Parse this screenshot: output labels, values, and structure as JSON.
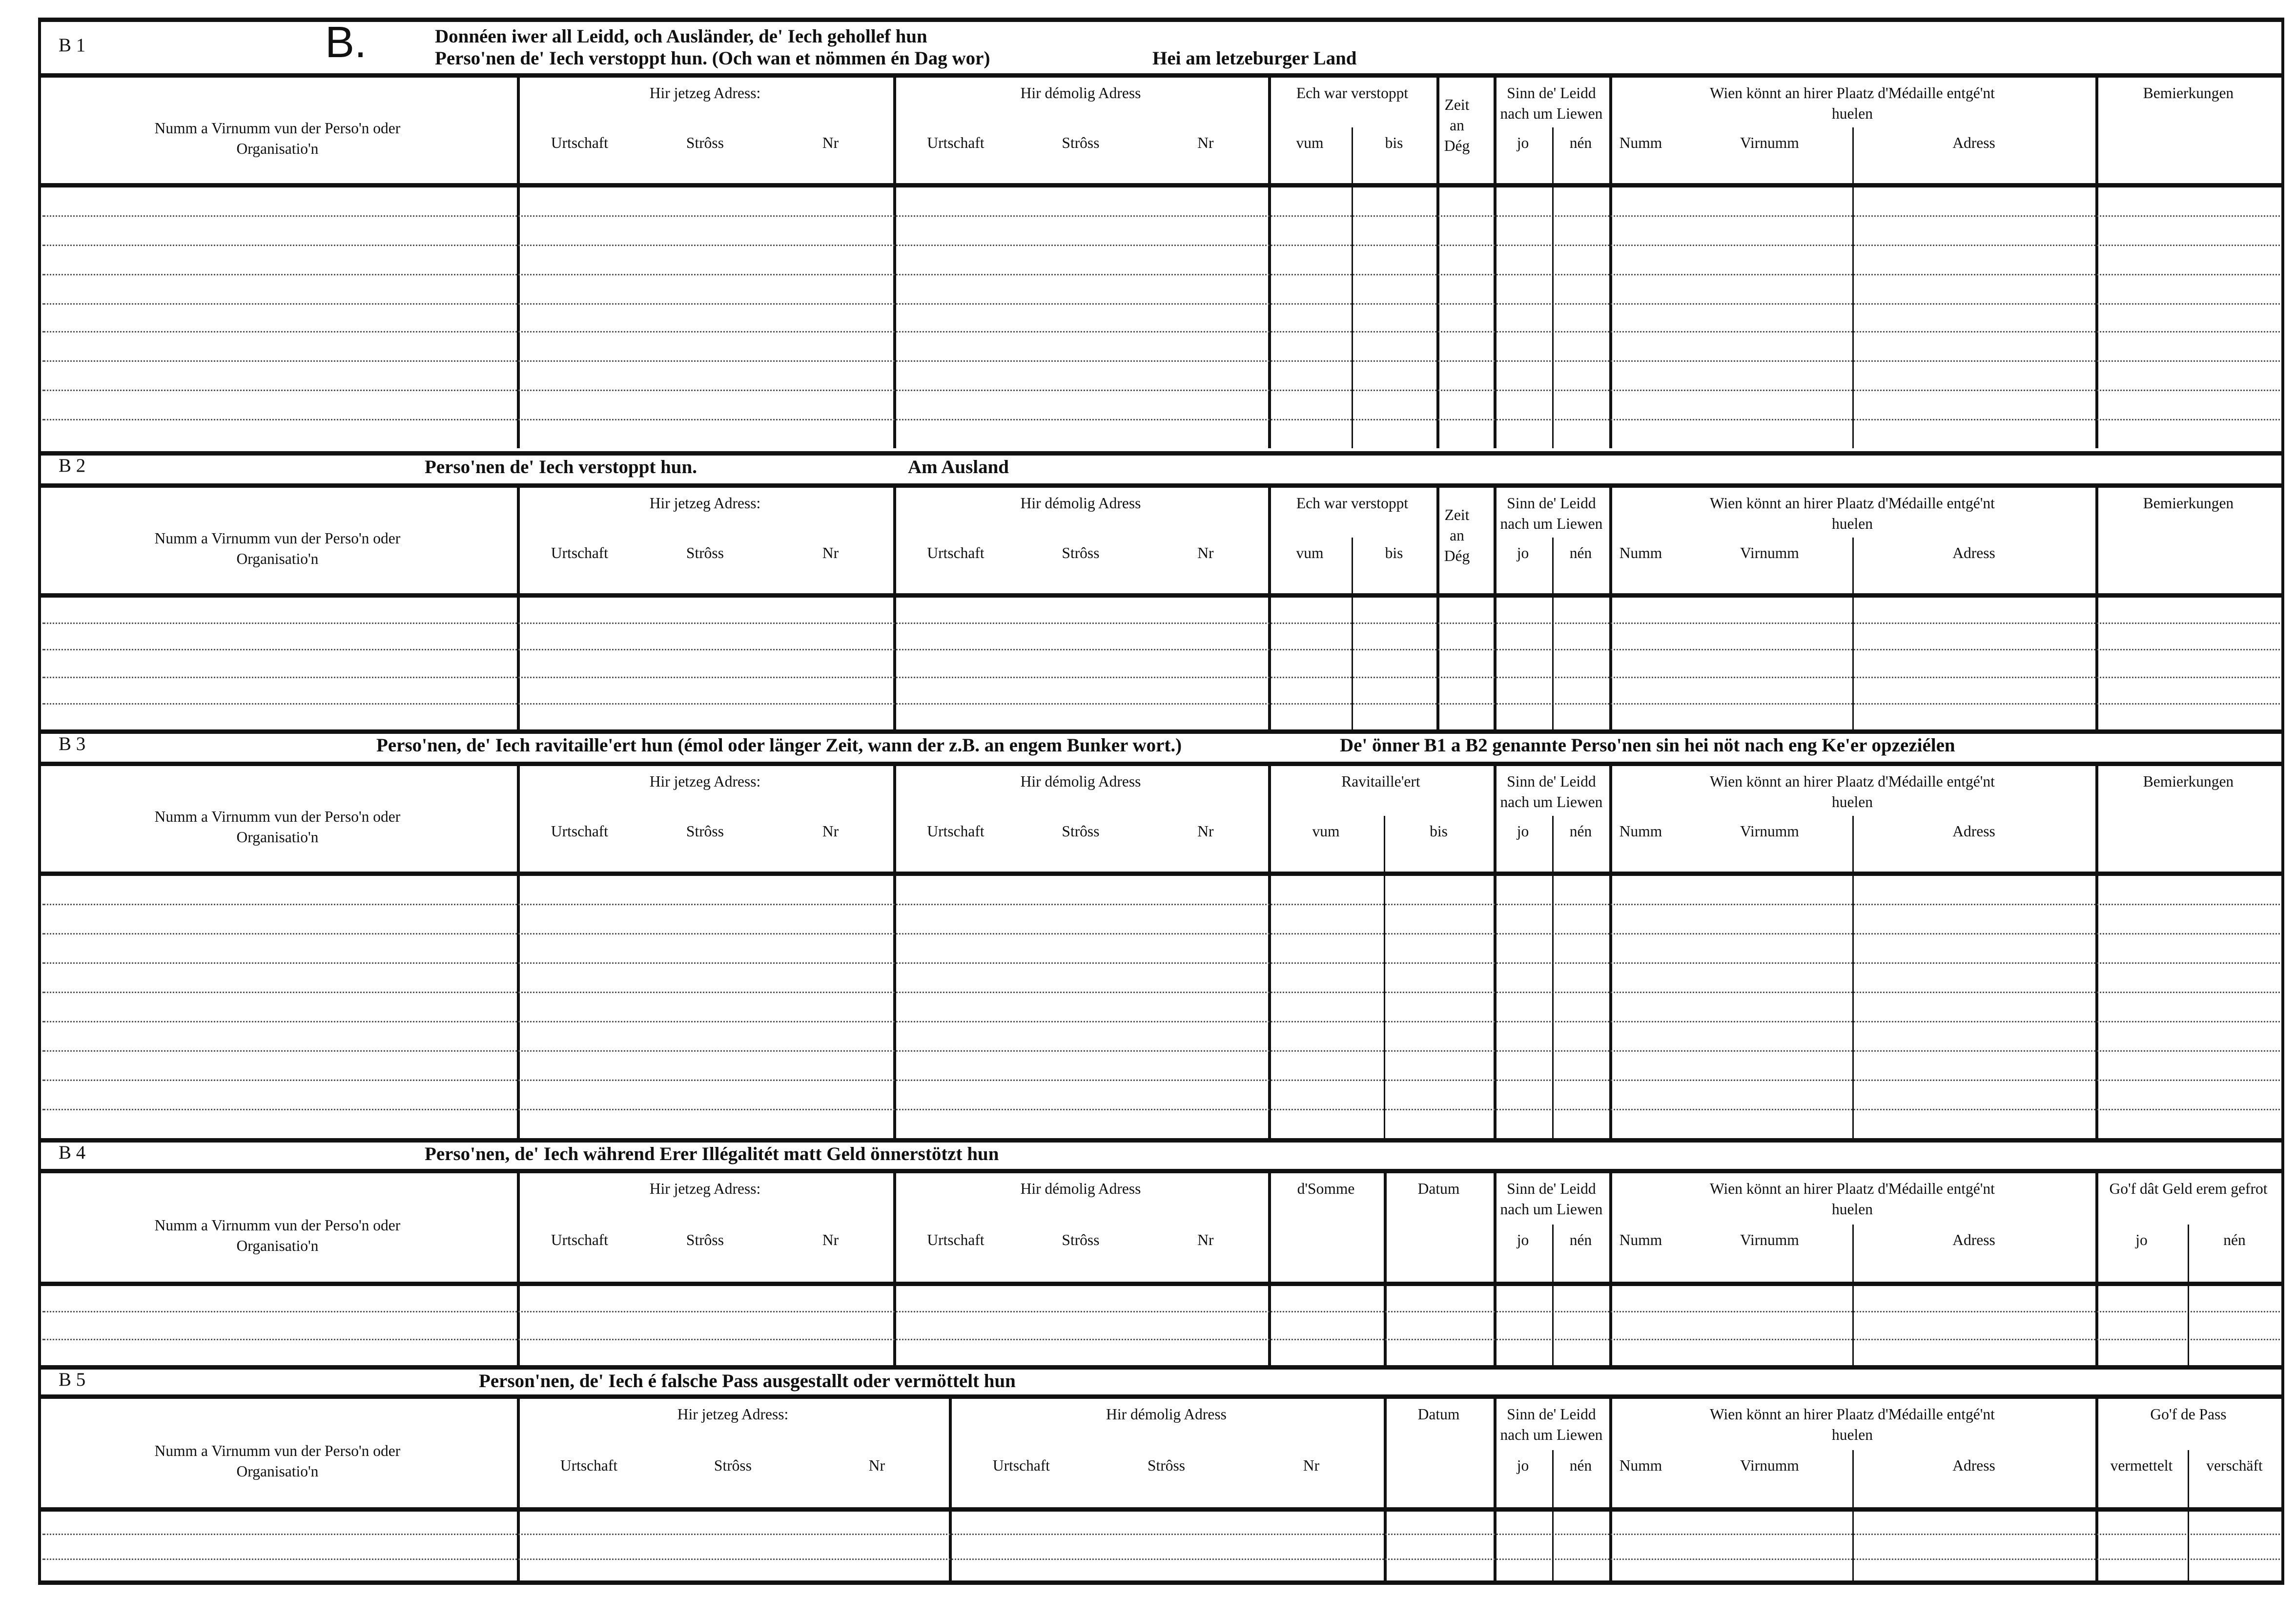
{
  "form_letter": "B.",
  "sections": [
    {
      "label": "B 1",
      "title_lines": [
        "Donnéen iwer all Leidd, och Ausländer, de' Iech gehollef hun",
        "Perso'nen de' Iech verstoppt hun.  (Och wan et nömmen én Dag wor)"
      ],
      "subtitle": "Hei am letzeburger Land",
      "columns": [
        {
          "title": "Numm a Virnumm vun der Perso'n oder Organisatio'n",
          "sub": []
        },
        {
          "title": "Hir jetzeg Adress:",
          "sub": [
            "Urtschaft",
            "Strôss",
            "Nr"
          ]
        },
        {
          "title": "Hir démolig Adress",
          "sub": [
            "Urtschaft",
            "Strôss",
            "Nr"
          ]
        },
        {
          "title": "Ech war verstoppt",
          "sub": [
            "vum",
            "bis"
          ]
        },
        {
          "title": "Zeit an Dég",
          "sub": []
        },
        {
          "title": "Sinn de' Leidd nach um Liewen",
          "sub": [
            "jo",
            "nén"
          ]
        },
        {
          "title": "Wien könnt an hirer Plaatz d'Médaille entgé'nt huelen",
          "sub": [
            "Numm",
            "Virnumm",
            "Adress"
          ]
        },
        {
          "title": "Bemierkungen",
          "sub": []
        }
      ]
    },
    {
      "label": "B 2",
      "title_lines": [
        "Perso'nen de' Iech verstoppt hun."
      ],
      "subtitle": "Am Ausland",
      "columns": [
        {
          "title": "Numm a Virnumm vun der Perso'n oder Organisatio'n",
          "sub": []
        },
        {
          "title": "Hir jetzeg Adress:",
          "sub": [
            "Urtschaft",
            "Strôss",
            "Nr"
          ]
        },
        {
          "title": "Hir démolig Adress",
          "sub": [
            "Urtschaft",
            "Strôss",
            "Nr"
          ]
        },
        {
          "title": "Ech war verstoppt",
          "sub": [
            "vum",
            "bis"
          ]
        },
        {
          "title": "Zeit an Dég",
          "sub": []
        },
        {
          "title": "Sinn de' Leidd nach um Liewen",
          "sub": [
            "jo",
            "nén"
          ]
        },
        {
          "title": "Wien könnt an hirer Plaatz d'Médaille entgé'nt huelen",
          "sub": [
            "Numm",
            "Virnumm",
            "Adress"
          ]
        },
        {
          "title": "Bemierkungen",
          "sub": []
        }
      ]
    },
    {
      "label": "B 3",
      "title_lines": [
        "Perso'nen, de' Iech ravitaille'ert hun (émol oder länger Zeit, wann der z.B. an engem Bunker wort.)"
      ],
      "subtitle": "De' önner B1 a B2 genannte Perso'nen sin hei nöt nach eng Ke'er opzeziélen",
      "columns": [
        {
          "title": "Numm a Virnumm vun der Perso'n oder Organisatio'n",
          "sub": []
        },
        {
          "title": "Hir jetzeg Adress:",
          "sub": [
            "Urtschaft",
            "Strôss",
            "Nr"
          ]
        },
        {
          "title": "Hir démolig Adress",
          "sub": [
            "Urtschaft",
            "Strôss",
            "Nr"
          ]
        },
        {
          "title": "Ravitaille'ert",
          "sub": [
            "vum",
            "bis"
          ]
        },
        {
          "title": "Sinn de' Leidd nach um Liewen",
          "sub": [
            "jo",
            "nén"
          ]
        },
        {
          "title": "Wien könnt an hirer Plaatz d'Médaille entgé'nt huelen",
          "sub": [
            "Numm",
            "Virnumm",
            "Adress"
          ]
        },
        {
          "title": "Bemierkungen",
          "sub": []
        }
      ]
    },
    {
      "label": "B 4",
      "title_lines": [
        "Perso'nen, de' Iech während Erer Illégalitét matt Geld önnerstötzt hun"
      ],
      "subtitle": "",
      "columns": [
        {
          "title": "Numm a Virnumm vun der Perso'n oder Organisatio'n",
          "sub": []
        },
        {
          "title": "Hir jetzeg Adress:",
          "sub": [
            "Urtschaft",
            "Strôss",
            "Nr"
          ]
        },
        {
          "title": "Hir démolig Adress",
          "sub": [
            "Urtschaft",
            "Strôss",
            "Nr"
          ]
        },
        {
          "title": "d'Somme",
          "sub": []
        },
        {
          "title": "Datum",
          "sub": []
        },
        {
          "title": "Sinn de' Leidd nach um Liewen",
          "sub": [
            "jo",
            "nén"
          ]
        },
        {
          "title": "Wien könnt an hirer Plaatz d'Médaille entgé'nt huelen",
          "sub": [
            "Numm",
            "Virnumm",
            "Adress"
          ]
        },
        {
          "title": "Go'f dât Geld erem gefrot",
          "sub": [
            "jo",
            "nén"
          ]
        }
      ]
    },
    {
      "label": "B 5",
      "title_lines": [
        "Person'nen, de' Iech é falsche Pass ausgestallt oder vermöttelt hun"
      ],
      "subtitle": "",
      "columns": [
        {
          "title": "Numm a Virnumm vun der Perso'n oder Organisatio'n",
          "sub": []
        },
        {
          "title": "Hir jetzeg Adress:",
          "sub": [
            "Urtschaft",
            "Strôss",
            "Nr"
          ]
        },
        {
          "title": "Hir démolig Adress",
          "sub": [
            "Urtschaft",
            "Strôss",
            "Nr"
          ]
        },
        {
          "title": "Datum",
          "sub": []
        },
        {
          "title": "Sinn de' Leidd nach um Liewen",
          "sub": [
            "jo",
            "nén"
          ]
        },
        {
          "title": "Wien könnt an hirer Plaatz d'Médaille entgé'nt huelen",
          "sub": [
            "Numm",
            "Virnumm",
            "Adress"
          ]
        },
        {
          "title": "Go'f de Pass",
          "sub": [
            "vermettelt",
            "verschäft"
          ]
        }
      ]
    }
  ]
}
